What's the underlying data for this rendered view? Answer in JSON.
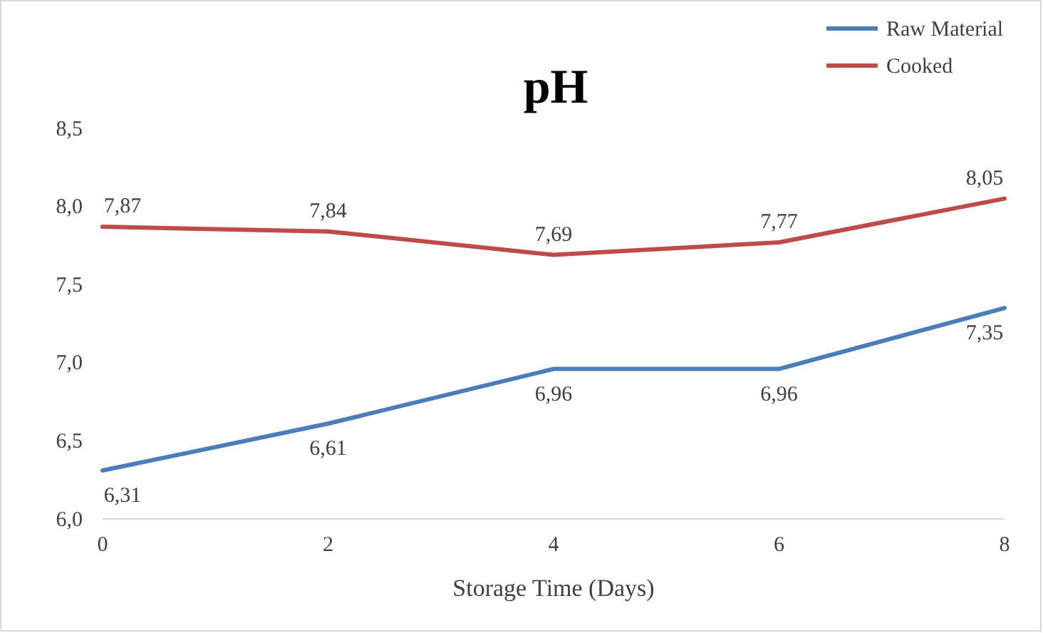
{
  "chart_data": {
    "type": "line",
    "title": "pH",
    "xlabel": "Storage Time (Days)",
    "x": [
      0,
      2,
      4,
      6,
      8
    ],
    "xlim": [
      0,
      8
    ],
    "xticks": [
      0,
      2,
      4,
      6,
      8
    ],
    "ylim": [
      6.0,
      8.5
    ],
    "yticks": [
      {
        "value": 6.0,
        "label": "6,0"
      },
      {
        "value": 6.5,
        "label": "6,5"
      },
      {
        "value": 7.0,
        "label": "7,0"
      },
      {
        "value": 7.5,
        "label": "7,5"
      },
      {
        "value": 8.0,
        "label": "8,0"
      },
      {
        "value": 8.5,
        "label": "8,5"
      }
    ],
    "grid": false,
    "legend": "top right",
    "marker": "none",
    "line_style": "solid",
    "series": [
      {
        "name": "Raw Material",
        "color": "#4a7ebb",
        "values": [
          6.31,
          6.61,
          6.96,
          6.96,
          7.35
        ],
        "value_labels": [
          "6,31",
          "6,61",
          "6,96",
          "6,96",
          "7,35"
        ]
      },
      {
        "name": "Cooked",
        "color": "#be4b48",
        "values": [
          7.87,
          7.84,
          7.69,
          7.77,
          8.05
        ],
        "value_labels": [
          "7,87",
          "7,84",
          "7,69",
          "7,77",
          "8,05"
        ]
      }
    ]
  }
}
